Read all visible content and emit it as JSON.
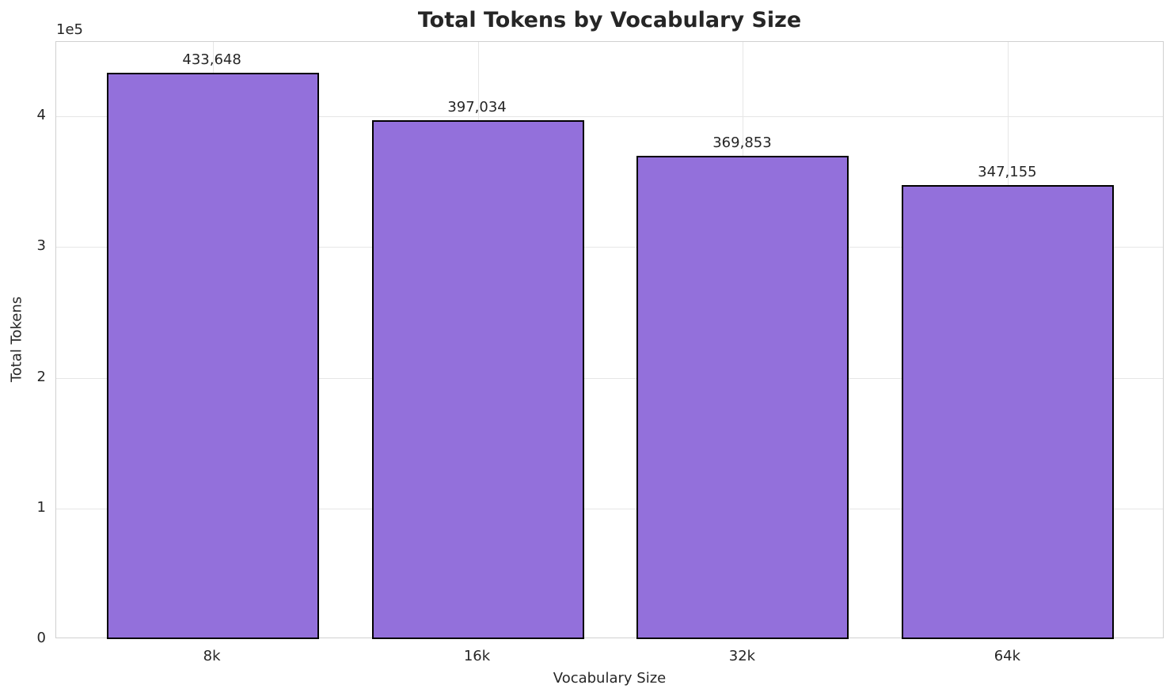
{
  "chart_data": {
    "type": "bar",
    "title": "Total Tokens by Vocabulary Size",
    "xlabel": "Vocabulary Size",
    "ylabel": "Total Tokens",
    "offset_text": "1e5",
    "categories": [
      "8k",
      "16k",
      "32k",
      "64k"
    ],
    "values": [
      433648,
      397034,
      369853,
      347155
    ],
    "bar_labels": [
      "433,648",
      "397,034",
      "369,853",
      "347,155"
    ],
    "ytick_values": [
      0,
      100000,
      200000,
      300000,
      400000
    ],
    "ytick_labels": [
      "0",
      "1",
      "2",
      "3",
      "4"
    ],
    "ylim": [
      0,
      457000
    ],
    "grid": true,
    "legend": false,
    "bar_color": "#9370DB",
    "bar_edge_color": "#000000",
    "grid_color": "#e6e6e6",
    "text_color": "#262626",
    "x_pad_units": 0.59,
    "bar_width_units": 0.8
  }
}
